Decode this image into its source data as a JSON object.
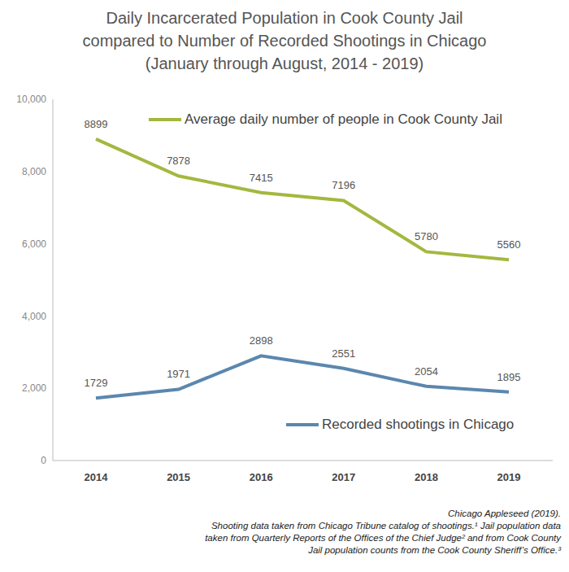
{
  "chart_data": {
    "type": "line",
    "title": "Daily Incarcerated Population in Cook County Jail\ncompared to Number of Recorded Shootings in Chicago\n(January through August, 2014 - 2019)",
    "categories": [
      "2014",
      "2015",
      "2016",
      "2017",
      "2018",
      "2019"
    ],
    "series": [
      {
        "name": "Average daily number of people in Cook County Jail",
        "color": "#a3b83f",
        "values": [
          8899,
          7878,
          7415,
          7196,
          5780,
          5560
        ]
      },
      {
        "name": "Recorded shootings in Chicago",
        "color": "#5b87ae",
        "values": [
          1729,
          1971,
          2898,
          2551,
          2054,
          1895
        ]
      }
    ],
    "ylim": [
      0,
      10000
    ],
    "yticks": [
      0,
      {
        "value": 2000,
        "label": "2,000"
      },
      {
        "value": 4000,
        "label": "4,000"
      },
      {
        "value": 6000,
        "label": "6,000"
      },
      {
        "value": 8000,
        "label": "8,000"
      },
      {
        "value": 10000,
        "label": "10,000"
      }
    ],
    "grid": false,
    "data_labels": true,
    "annotations": [
      "Chicago Appleseed (2019).",
      "Shooting data taken from Chicago Tribune catalog of shootings.¹ Jail population data\ntaken from Quarterly Reports of the Offices of the Chief Judge² and from Cook County\nJail population counts from the Cook County Sheriff’s Office.³"
    ]
  }
}
